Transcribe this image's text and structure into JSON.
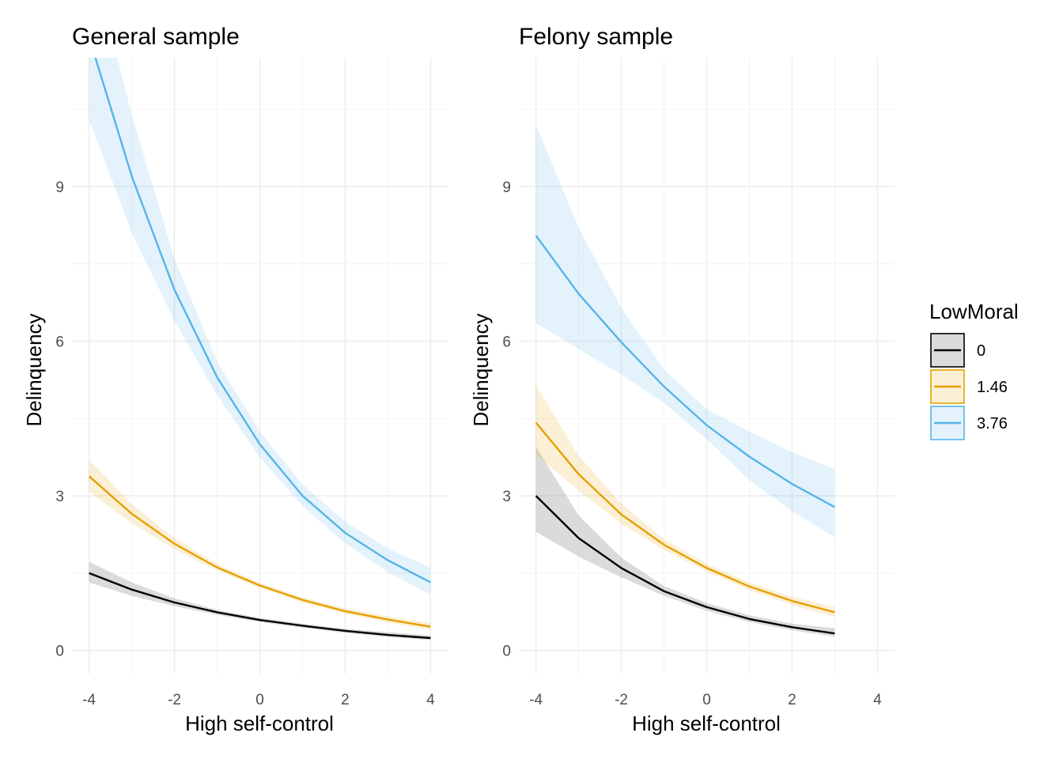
{
  "chart_data": [
    {
      "type": "line",
      "title": "General sample",
      "xlabel": "High self-control",
      "ylabel": "Delinquency",
      "xlim": [
        -4.4,
        4.4
      ],
      "ylim": [
        -0.45,
        11.5
      ],
      "xticks": [
        -4,
        -2,
        0,
        2,
        4
      ],
      "xtick_labels": [
        "-4",
        "-2",
        "0",
        "2",
        "4"
      ],
      "yticks": [
        0,
        3,
        6,
        9
      ],
      "ytick_labels": [
        "0",
        "3",
        "6",
        "9"
      ],
      "grid": true,
      "x": [
        -4,
        -3,
        -2,
        -1,
        0,
        1,
        2,
        3,
        4
      ],
      "series": [
        {
          "name": "0",
          "color": "#000000",
          "values": [
            1.5,
            1.18,
            0.93,
            0.74,
            0.59,
            0.48,
            0.38,
            0.3,
            0.24
          ],
          "lower": [
            1.32,
            1.06,
            0.86,
            0.69,
            0.55,
            0.44,
            0.34,
            0.26,
            0.2
          ],
          "upper": [
            1.72,
            1.32,
            1.01,
            0.79,
            0.63,
            0.52,
            0.42,
            0.35,
            0.29
          ]
        },
        {
          "name": "1.46",
          "color": "#E69F00",
          "values": [
            3.38,
            2.65,
            2.07,
            1.61,
            1.26,
            0.98,
            0.76,
            0.6,
            0.46
          ],
          "lower": [
            3.08,
            2.47,
            1.96,
            1.55,
            1.21,
            0.93,
            0.71,
            0.54,
            0.4
          ],
          "upper": [
            3.7,
            2.84,
            2.18,
            1.68,
            1.31,
            1.03,
            0.82,
            0.66,
            0.53
          ]
        },
        {
          "name": "3.76",
          "color": "#56B4E9",
          "values": [
            11.9,
            9.2,
            7.0,
            5.3,
            4.0,
            3.0,
            2.28,
            1.75,
            1.32
          ],
          "lower": [
            10.3,
            8.1,
            6.4,
            4.95,
            3.75,
            2.8,
            2.08,
            1.52,
            1.08
          ],
          "upper": [
            13.6,
            10.4,
            7.6,
            5.6,
            4.25,
            3.22,
            2.5,
            1.98,
            1.6
          ]
        }
      ]
    },
    {
      "type": "line",
      "title": "Felony sample",
      "xlabel": "High self-control",
      "ylabel": "Delinquency",
      "xlim": [
        -4.4,
        4.4
      ],
      "ylim": [
        -0.45,
        11.5
      ],
      "xticks": [
        -4,
        -2,
        0,
        2,
        4
      ],
      "xtick_labels": [
        "-4",
        "-2",
        "0",
        "2",
        "4"
      ],
      "yticks": [
        0,
        3,
        6,
        9
      ],
      "ytick_labels": [
        "0",
        "3",
        "6",
        "9"
      ],
      "grid": true,
      "x": [
        -4,
        -3,
        -2,
        -1,
        0,
        1,
        2,
        3
      ],
      "series": [
        {
          "name": "0",
          "color": "#000000",
          "values": [
            3.0,
            2.18,
            1.6,
            1.15,
            0.84,
            0.61,
            0.45,
            0.33
          ],
          "lower": [
            2.3,
            1.82,
            1.42,
            1.06,
            0.77,
            0.55,
            0.39,
            0.27
          ],
          "upper": [
            3.95,
            2.62,
            1.8,
            1.25,
            0.92,
            0.68,
            0.52,
            0.43
          ]
        },
        {
          "name": "1.46",
          "color": "#E69F00",
          "values": [
            4.42,
            3.42,
            2.64,
            2.05,
            1.6,
            1.24,
            0.96,
            0.74
          ],
          "lower": [
            3.8,
            3.1,
            2.46,
            1.95,
            1.53,
            1.17,
            0.88,
            0.65
          ],
          "upper": [
            5.15,
            3.78,
            2.85,
            2.16,
            1.68,
            1.32,
            1.04,
            0.84
          ]
        },
        {
          "name": "3.76",
          "color": "#56B4E9",
          "values": [
            8.05,
            6.92,
            5.98,
            5.12,
            4.37,
            3.76,
            3.23,
            2.78
          ],
          "lower": [
            6.35,
            5.85,
            5.35,
            4.8,
            4.1,
            3.3,
            2.7,
            2.2
          ],
          "upper": [
            10.2,
            8.2,
            6.65,
            5.45,
            4.68,
            4.25,
            3.85,
            3.52
          ]
        }
      ]
    }
  ],
  "legend": {
    "title": "LowMoral",
    "entries": [
      {
        "label": "0",
        "line_color": "#000000",
        "fill_color": "#999999"
      },
      {
        "label": "1.46",
        "line_color": "#E69F00",
        "fill_color": "#E69F00"
      },
      {
        "label": "3.76",
        "line_color": "#56B4E9",
        "fill_color": "#56B4E9"
      }
    ]
  }
}
